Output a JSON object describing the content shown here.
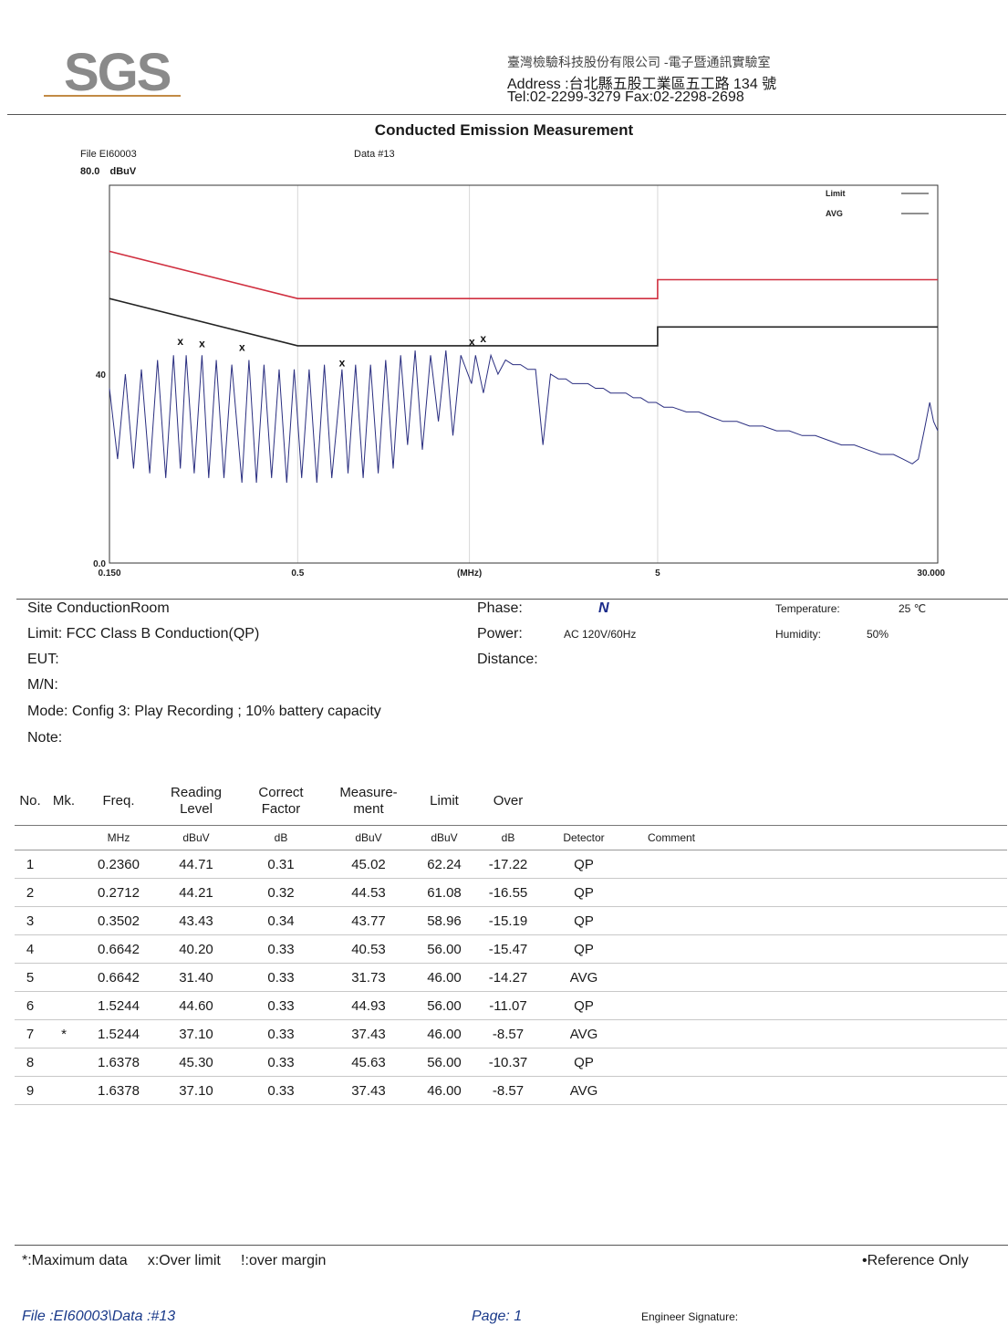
{
  "header": {
    "logo": "SGS",
    "company_name": "臺灣檢驗科技股份有限公司 -電子暨通訊實驗室",
    "address": "Address :台北縣五股工業區五工路 134 號",
    "tel_fax": "Tel:02-2299-3279  Fax:02-2298-2698"
  },
  "chart": {
    "title": "Conducted Emission Measurement",
    "file_label": "File  EI60003",
    "data_label": "Data  #13",
    "y_unit": "dBuV",
    "legend": [
      "Limit",
      "AVG"
    ],
    "colors": {
      "limit": "#d03040",
      "avg_limit": "#222222",
      "trace": "#2a2e80",
      "grid": "#d8d8d8"
    }
  },
  "chart_data": {
    "type": "line",
    "title": "Conducted Emission Measurement",
    "xlabel": "(MHz)",
    "ylabel": "dBuV",
    "x_scale": "log",
    "xlim": [
      0.15,
      30.0
    ],
    "ylim": [
      0.0,
      80.0
    ],
    "x_ticks": [
      {
        "value": 0.15,
        "label": "0.150"
      },
      {
        "value": 0.5,
        "label": "0.5"
      },
      {
        "value": 1.5,
        "label": "(MHz)"
      },
      {
        "value": 5,
        "label": "5"
      },
      {
        "value": 30,
        "label": "30.000"
      }
    ],
    "y_ticks": [
      {
        "value": 80,
        "label": "80.0"
      },
      {
        "value": 40,
        "label": "40"
      },
      {
        "value": 0,
        "label": "0.0"
      }
    ],
    "series": [
      {
        "name": "Limit",
        "x": [
          0.15,
          0.5,
          0.5,
          5.0,
          5.0,
          30.0
        ],
        "y": [
          66,
          56,
          56,
          56,
          60,
          60
        ]
      },
      {
        "name": "AVG",
        "x": [
          0.15,
          0.5,
          0.5,
          5.0,
          5.0,
          30.0
        ],
        "y": [
          56,
          46,
          46,
          46,
          50,
          50
        ]
      }
    ],
    "trace": {
      "x": [
        0.15,
        0.158,
        0.166,
        0.175,
        0.184,
        0.194,
        0.204,
        0.215,
        0.226,
        0.236,
        0.245,
        0.258,
        0.271,
        0.283,
        0.297,
        0.312,
        0.328,
        0.35,
        0.366,
        0.384,
        0.403,
        0.423,
        0.444,
        0.466,
        0.489,
        0.513,
        0.538,
        0.565,
        0.593,
        0.622,
        0.664,
        0.69,
        0.724,
        0.76,
        0.797,
        0.837,
        0.878,
        0.921,
        0.966,
        1.01,
        1.06,
        1.11,
        1.17,
        1.23,
        1.29,
        1.35,
        1.42,
        1.52,
        1.56,
        1.64,
        1.72,
        1.8,
        1.89,
        1.98,
        2.08,
        2.18,
        2.29,
        2.4,
        2.52,
        2.65,
        2.78,
        2.9,
        3.05,
        3.2,
        3.36,
        3.53,
        3.7,
        3.88,
        4.08,
        4.28,
        4.49,
        4.71,
        4.95,
        5.2,
        5.5,
        6.0,
        6.5,
        7.0,
        7.6,
        8.3,
        9.0,
        9.8,
        10.7,
        11.6,
        12.6,
        13.7,
        14.9,
        16.2,
        17.6,
        19.1,
        20.8,
        22.6,
        24.0,
        25.5,
        26.5,
        27.5,
        28.5,
        29.2,
        30.0
      ],
      "y": [
        37,
        22,
        40,
        20,
        41,
        19,
        43,
        18,
        44,
        20,
        44,
        19,
        44,
        18,
        43,
        18,
        42,
        17,
        43,
        17,
        42,
        18,
        41,
        17,
        41,
        18,
        41,
        17,
        42,
        18,
        41,
        19,
        42,
        18,
        42,
        19,
        43,
        20,
        44,
        25,
        45,
        24,
        44,
        30,
        45,
        27,
        44,
        38,
        44,
        36,
        44,
        40,
        43,
        42,
        42,
        41,
        41,
        25,
        40,
        39,
        39,
        38,
        38,
        38,
        37,
        37,
        36,
        36,
        36,
        35,
        35,
        34,
        34,
        33,
        33,
        32,
        32,
        31,
        30,
        30,
        29,
        29,
        28,
        28,
        27,
        27,
        26,
        25,
        25,
        24,
        23,
        23,
        22,
        21,
        22,
        28,
        34,
        30,
        28
      ]
    },
    "markers": [
      {
        "x": 0.236,
        "y": 45.02
      },
      {
        "x": 0.2712,
        "y": 44.53
      },
      {
        "x": 0.3502,
        "y": 43.77
      },
      {
        "x": 0.6642,
        "y": 40.53
      },
      {
        "x": 1.5244,
        "y": 44.93
      },
      {
        "x": 1.6378,
        "y": 45.63
      }
    ]
  },
  "info": {
    "site": "Site  ConductionRoom",
    "limit": "Limit:  FCC Class B Conduction(QP)",
    "eut": "EUT:",
    "mn": "M/N:",
    "mode": "Mode:   Config 3:   Play  Recording ; 10% battery capacity",
    "note": "Note:",
    "phase_label": "Phase:",
    "phase_value": "N",
    "power_label": "Power:",
    "power_value": "AC 120V/60Hz",
    "distance_label": "Distance:",
    "temperature_label": "Temperature:",
    "temperature_value": "25 ℃",
    "humidity_label": "Humidity:",
    "humidity_value": "50%"
  },
  "table": {
    "headers": [
      "No.",
      "Mk.",
      "Freq.",
      "Reading\nLevel",
      "Correct\nFactor",
      "Measure-\nment",
      "Limit",
      "Over",
      "",
      ""
    ],
    "units": [
      "",
      "",
      "MHz",
      "dBuV",
      "dB",
      "dBuV",
      "dBuV",
      "dB",
      "Detector",
      "Comment"
    ],
    "rows": [
      [
        "1",
        "",
        "0.2360",
        "44.71",
        "0.31",
        "45.02",
        "62.24",
        "-17.22",
        "QP",
        ""
      ],
      [
        "2",
        "",
        "0.2712",
        "44.21",
        "0.32",
        "44.53",
        "61.08",
        "-16.55",
        "QP",
        ""
      ],
      [
        "3",
        "",
        "0.3502",
        "43.43",
        "0.34",
        "43.77",
        "58.96",
        "-15.19",
        "QP",
        ""
      ],
      [
        "4",
        "",
        "0.6642",
        "40.20",
        "0.33",
        "40.53",
        "56.00",
        "-15.47",
        "QP",
        ""
      ],
      [
        "5",
        "",
        "0.6642",
        "31.40",
        "0.33",
        "31.73",
        "46.00",
        "-14.27",
        "AVG",
        ""
      ],
      [
        "6",
        "",
        "1.5244",
        "44.60",
        "0.33",
        "44.93",
        "56.00",
        "-11.07",
        "QP",
        ""
      ],
      [
        "7",
        "*",
        "1.5244",
        "37.10",
        "0.33",
        "37.43",
        "46.00",
        "-8.57",
        "AVG",
        ""
      ],
      [
        "8",
        "",
        "1.6378",
        "45.30",
        "0.33",
        "45.63",
        "56.00",
        "-10.37",
        "QP",
        ""
      ],
      [
        "9",
        "",
        "1.6378",
        "37.10",
        "0.33",
        "37.43",
        "46.00",
        "-8.57",
        "AVG",
        ""
      ]
    ]
  },
  "footer": {
    "legend": "*:Maximum data     x:Over limit     !:over margin",
    "reference": "•Reference Only",
    "file": "File :EI60003\\Data :#13",
    "page": "Page:  1",
    "engineer": "Engineer Signature:"
  }
}
